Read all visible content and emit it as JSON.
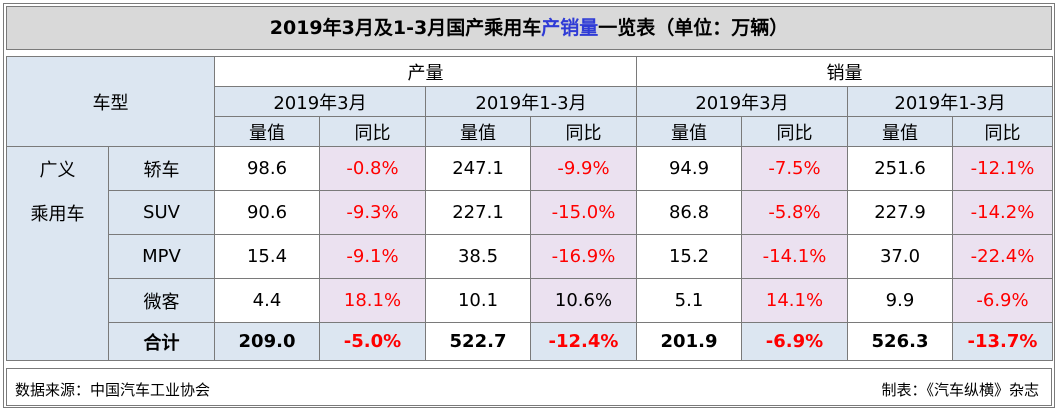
{
  "title": {
    "part1": "2019年3月及1-3月国产乘用车",
    "highlight": "产销量",
    "part2": "一览表（单位：万辆）"
  },
  "header": {
    "vehicle_type": "车型",
    "production": "产量",
    "sales": "销量",
    "period_month": "2019年3月",
    "period_ytd": "2019年1-3月",
    "value": "量值",
    "yoy": "同比"
  },
  "group_label_line1": "广义",
  "group_label_line2": "乘用车",
  "rows": [
    {
      "name": "轿车",
      "p_m": "98.6",
      "p_m_yoy": "-0.8%",
      "p_y": "247.1",
      "p_y_yoy": "-9.9%",
      "s_m": "94.9",
      "s_m_yoy": "-7.5%",
      "s_y": "251.6",
      "s_y_yoy": "-12.1%"
    },
    {
      "name": "SUV",
      "p_m": "90.6",
      "p_m_yoy": "-9.3%",
      "p_y": "227.1",
      "p_y_yoy": "-15.0%",
      "s_m": "86.8",
      "s_m_yoy": "-5.8%",
      "s_y": "227.9",
      "s_y_yoy": "-14.2%"
    },
    {
      "name": "MPV",
      "p_m": "15.4",
      "p_m_yoy": "-9.1%",
      "p_y": "38.5",
      "p_y_yoy": "-16.9%",
      "s_m": "15.2",
      "s_m_yoy": "-14.1%",
      "s_y": "37.0",
      "s_y_yoy": "-22.4%"
    },
    {
      "name": "微客",
      "p_m": "4.4",
      "p_m_yoy": "18.1%",
      "p_y": "10.1",
      "p_y_yoy": "10.6%",
      "s_m": "5.1",
      "s_m_yoy": "14.1%",
      "s_y": "9.9",
      "s_y_yoy": "-6.9%"
    }
  ],
  "total": {
    "name": "合计",
    "p_m": "209.0",
    "p_m_yoy": "-5.0%",
    "p_y": "522.7",
    "p_y_yoy": "-12.4%",
    "s_m": "201.9",
    "s_m_yoy": "-6.9%",
    "s_y": "526.3",
    "s_y_yoy": "-13.7%"
  },
  "footer": {
    "source": "数据来源：中国汽车工业协会",
    "maker": "制表：《汽车纵横》杂志"
  },
  "colors": {
    "header_bg": "#dce6f1",
    "yoy_bg": "#ebe1f0",
    "negative_text": "#ff0000",
    "title_bg": "#d9d9d9",
    "title_highlight": "#2f3bd6"
  }
}
